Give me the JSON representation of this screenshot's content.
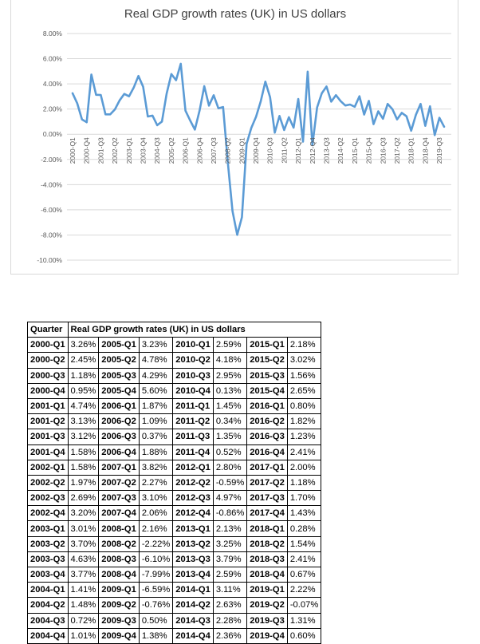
{
  "chart_data": {
    "type": "line",
    "title": "Real GDP growth rates (UK) in US dollars",
    "xlabel": "",
    "ylabel": "",
    "ylim": [
      -10,
      8
    ],
    "ytick_labels": [
      "8.00%",
      "6.00%",
      "4.00%",
      "2.00%",
      "0.00%",
      "-2.00%",
      "-4.00%",
      "-6.00%",
      "-8.00%",
      "-10.00%"
    ],
    "ytick_values": [
      8,
      6,
      4,
      2,
      0,
      -2,
      -4,
      -6,
      -8,
      -10
    ],
    "grid": true,
    "legend": "none",
    "line_color": "#5b9bd5",
    "categories": [
      "2000-Q1",
      "2000-Q2",
      "2000-Q3",
      "2000-Q4",
      "2001-Q1",
      "2001-Q2",
      "2001-Q3",
      "2001-Q4",
      "2002-Q1",
      "2002-Q2",
      "2002-Q3",
      "2002-Q4",
      "2003-Q1",
      "2003-Q2",
      "2003-Q3",
      "2003-Q4",
      "2004-Q1",
      "2004-Q2",
      "2004-Q3",
      "2004-Q4",
      "2005-Q1",
      "2005-Q2",
      "2005-Q3",
      "2005-Q4",
      "2006-Q1",
      "2006-Q2",
      "2006-Q3",
      "2006-Q4",
      "2007-Q1",
      "2007-Q2",
      "2007-Q3",
      "2007-Q4",
      "2008-Q1",
      "2008-Q2",
      "2008-Q3",
      "2008-Q4",
      "2009-Q1",
      "2009-Q2",
      "2009-Q3",
      "2009-Q4",
      "2010-Q1",
      "2010-Q2",
      "2010-Q3",
      "2010-Q4",
      "2011-Q1",
      "2011-Q2",
      "2011-Q3",
      "2011-Q4",
      "2012-Q1",
      "2012-Q2",
      "2012-Q3",
      "2012-Q4",
      "2013-Q1",
      "2013-Q2",
      "2013-Q3",
      "2013-Q4",
      "2014-Q1",
      "2014-Q2",
      "2014-Q3",
      "2014-Q4",
      "2015-Q1",
      "2015-Q2",
      "2015-Q3",
      "2015-Q4",
      "2016-Q1",
      "2016-Q2",
      "2016-Q3",
      "2016-Q4",
      "2017-Q1",
      "2017-Q2",
      "2017-Q3",
      "2017-Q4",
      "2018-Q1",
      "2018-Q2",
      "2018-Q3",
      "2018-Q4",
      "2019-Q1",
      "2019-Q2",
      "2019-Q3",
      "2019-Q4"
    ],
    "values": [
      3.26,
      2.45,
      1.18,
      0.95,
      4.74,
      3.13,
      3.12,
      1.58,
      1.58,
      1.97,
      2.69,
      3.2,
      3.01,
      3.7,
      4.63,
      3.77,
      1.41,
      1.48,
      0.72,
      1.01,
      3.23,
      4.78,
      4.29,
      5.6,
      1.87,
      1.09,
      0.37,
      1.88,
      3.82,
      2.27,
      3.1,
      2.06,
      2.16,
      -2.22,
      -6.1,
      -7.99,
      -6.59,
      -0.76,
      0.5,
      1.38,
      2.59,
      4.18,
      2.95,
      0.13,
      1.45,
      0.34,
      1.35,
      0.52,
      2.8,
      -0.59,
      4.97,
      -0.86,
      2.13,
      3.25,
      3.79,
      2.59,
      3.11,
      2.63,
      2.28,
      2.36,
      2.18,
      3.02,
      1.56,
      2.65,
      0.8,
      1.82,
      1.23,
      2.41,
      2.0,
      1.18,
      1.7,
      1.43,
      0.28,
      1.54,
      2.41,
      0.67,
      2.22,
      -0.07,
      1.31,
      0.6
    ],
    "xtick_every": 3
  },
  "table": {
    "header": {
      "quarter": "Quarter",
      "title": "Real GDP growth rates (UK) in US dollars"
    },
    "rows": [
      [
        [
          "2000-Q1",
          "3.26%"
        ],
        [
          "2005-Q1",
          "3.23%"
        ],
        [
          "2010-Q1",
          "2.59%"
        ],
        [
          "2015-Q1",
          "2.18%"
        ]
      ],
      [
        [
          "2000-Q2",
          "2.45%"
        ],
        [
          "2005-Q2",
          "4.78%"
        ],
        [
          "2010-Q2",
          "4.18%"
        ],
        [
          "2015-Q2",
          "3.02%"
        ]
      ],
      [
        [
          "2000-Q3",
          "1.18%"
        ],
        [
          "2005-Q3",
          "4.29%"
        ],
        [
          "2010-Q3",
          "2.95%"
        ],
        [
          "2015-Q3",
          "1.56%"
        ]
      ],
      [
        [
          "2000-Q4",
          "0.95%"
        ],
        [
          "2005-Q4",
          "5.60%"
        ],
        [
          "2010-Q4",
          "0.13%"
        ],
        [
          "2015-Q4",
          "2.65%"
        ]
      ],
      [
        [
          "2001-Q1",
          "4.74%"
        ],
        [
          "2006-Q1",
          "1.87%"
        ],
        [
          "2011-Q1",
          "1.45%"
        ],
        [
          "2016-Q1",
          "0.80%"
        ]
      ],
      [
        [
          "2001-Q2",
          "3.13%"
        ],
        [
          "2006-Q2",
          "1.09%"
        ],
        [
          "2011-Q2",
          "0.34%"
        ],
        [
          "2016-Q2",
          "1.82%"
        ]
      ],
      [
        [
          "2001-Q3",
          "3.12%"
        ],
        [
          "2006-Q3",
          "0.37%"
        ],
        [
          "2011-Q3",
          "1.35%"
        ],
        [
          "2016-Q3",
          "1.23%"
        ]
      ],
      [
        [
          "2001-Q4",
          "1.58%"
        ],
        [
          "2006-Q4",
          "1.88%"
        ],
        [
          "2011-Q4",
          "0.52%"
        ],
        [
          "2016-Q4",
          "2.41%"
        ]
      ],
      [
        [
          "2002-Q1",
          "1.58%"
        ],
        [
          "2007-Q1",
          "3.82%"
        ],
        [
          "2012-Q1",
          "2.80%"
        ],
        [
          "2017-Q1",
          "2.00%"
        ]
      ],
      [
        [
          "2002-Q2",
          "1.97%"
        ],
        [
          "2007-Q2",
          "2.27%"
        ],
        [
          "2012-Q2",
          "-0.59%"
        ],
        [
          "2017-Q2",
          "1.18%"
        ]
      ],
      [
        [
          "2002-Q3",
          "2.69%"
        ],
        [
          "2007-Q3",
          "3.10%"
        ],
        [
          "2012-Q3",
          "4.97%"
        ],
        [
          "2017-Q3",
          "1.70%"
        ]
      ],
      [
        [
          "2002-Q4",
          "3.20%"
        ],
        [
          "2007-Q4",
          "2.06%"
        ],
        [
          "2012-Q4",
          "-0.86%"
        ],
        [
          "2017-Q4",
          "1.43%"
        ]
      ],
      [
        [
          "2003-Q1",
          "3.01%"
        ],
        [
          "2008-Q1",
          "2.16%"
        ],
        [
          "2013-Q1",
          "2.13%"
        ],
        [
          "2018-Q1",
          "0.28%"
        ]
      ],
      [
        [
          "2003-Q2",
          "3.70%"
        ],
        [
          "2008-Q2",
          "-2.22%"
        ],
        [
          "2013-Q2",
          "3.25%"
        ],
        [
          "2018-Q2",
          "1.54%"
        ]
      ],
      [
        [
          "2003-Q3",
          "4.63%"
        ],
        [
          "2008-Q3",
          "-6.10%"
        ],
        [
          "2013-Q3",
          "3.79%"
        ],
        [
          "2018-Q3",
          "2.41%"
        ]
      ],
      [
        [
          "2003-Q4",
          "3.77%"
        ],
        [
          "2008-Q4",
          "-7.99%"
        ],
        [
          "2013-Q4",
          "2.59%"
        ],
        [
          "2018-Q4",
          "0.67%"
        ]
      ],
      [
        [
          "2004-Q1",
          "1.41%"
        ],
        [
          "2009-Q1",
          "-6.59%"
        ],
        [
          "2014-Q1",
          "3.11%"
        ],
        [
          "2019-Q1",
          "2.22%"
        ]
      ],
      [
        [
          "2004-Q2",
          "1.48%"
        ],
        [
          "2009-Q2",
          "-0.76%"
        ],
        [
          "2014-Q2",
          "2.63%"
        ],
        [
          "2019-Q2",
          "-0.07%"
        ]
      ],
      [
        [
          "2004-Q3",
          "0.72%"
        ],
        [
          "2009-Q3",
          "0.50%"
        ],
        [
          "2014-Q3",
          "2.28%"
        ],
        [
          "2019-Q3",
          "1.31%"
        ]
      ],
      [
        [
          "2004-Q4",
          "1.01%"
        ],
        [
          "2009-Q4",
          "1.38%"
        ],
        [
          "2014-Q4",
          "2.36%"
        ],
        [
          "2019-Q4",
          "0.60%"
        ]
      ]
    ]
  }
}
